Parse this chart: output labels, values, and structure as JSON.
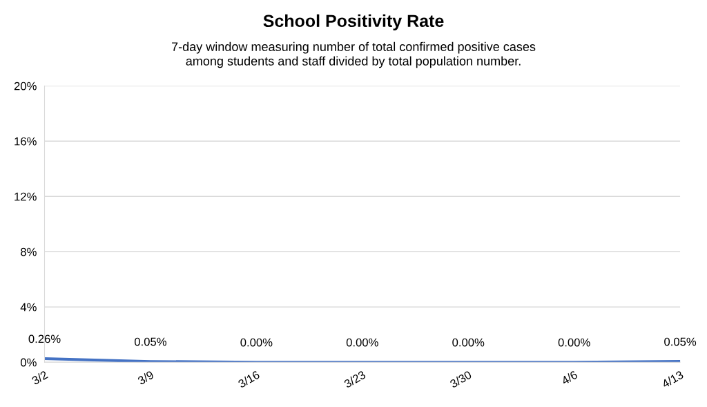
{
  "chart_data": {
    "type": "line",
    "title": "School Positivity Rate",
    "subtitle": "7-day window measuring number of total confirmed positive cases\namong students and staff divided by total population number.",
    "categories": [
      "3/2",
      "3/9",
      "3/16",
      "3/23",
      "3/30",
      "4/6",
      "4/13"
    ],
    "series": [
      {
        "color": "#4472c4",
        "values": [
          0.26,
          0.05,
          0,
          0,
          0,
          0,
          0.05
        ],
        "value_labels": [
          "0.26%",
          "0.05%",
          "0.00%",
          "0.00%",
          "0.00%",
          "0.00%",
          "0.05%"
        ]
      }
    ],
    "ylim": [
      0,
      20
    ],
    "yticks": [
      {
        "value": 0,
        "label": "0%"
      },
      {
        "value": 4,
        "label": "4%"
      },
      {
        "value": 8,
        "label": "8%"
      },
      {
        "value": 12,
        "label": "12%"
      },
      {
        "value": 16,
        "label": "16%"
      },
      {
        "value": 20,
        "label": "20%"
      }
    ],
    "grid": "y",
    "marker": "none",
    "line_style": "solid",
    "legend": false
  }
}
